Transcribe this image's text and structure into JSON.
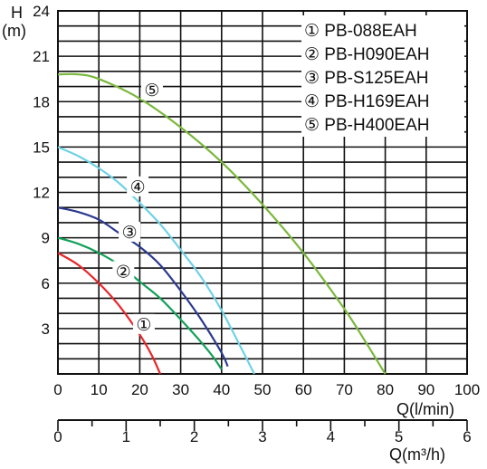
{
  "chart_data": {
    "type": "line",
    "ylabel_main": "H",
    "ylabel_unit": "(m)",
    "xlabel_primary": "Q(l/min)",
    "xlabel_secondary": "Q(m³/h)",
    "xlim": [
      0,
      100
    ],
    "ylim": [
      0,
      24
    ],
    "xlim_secondary": [
      0,
      6
    ],
    "x_ticks": [
      "0",
      "10",
      "20",
      "30",
      "40",
      "50",
      "60",
      "70",
      "80",
      "90",
      "100"
    ],
    "y_ticks": [
      "3",
      "6",
      "9",
      "12",
      "15",
      "18",
      "21",
      "24"
    ],
    "x_secondary_ticks": [
      "0",
      "1",
      "2",
      "3",
      "4",
      "5",
      "6"
    ],
    "grid": true,
    "legend_position": "top-right",
    "series": [
      {
        "name": "PB-088EAH",
        "marker": "①",
        "color": "#e8262b",
        "marker_at": [
          21,
          3.3
        ],
        "x": [
          0,
          5,
          10,
          15,
          20,
          23,
          25
        ],
        "y": [
          8.0,
          7.2,
          6.0,
          4.5,
          2.6,
          1.2,
          0
        ]
      },
      {
        "name": "PB-H090EAH",
        "marker": "②",
        "color": "#12a05a",
        "marker_at": [
          16,
          6.8
        ],
        "x": [
          0,
          5,
          10,
          15,
          20,
          25,
          30,
          35,
          38,
          40
        ],
        "y": [
          9.0,
          8.6,
          8.0,
          7.2,
          6.1,
          5.0,
          3.6,
          2.1,
          1.1,
          0.3
        ]
      },
      {
        "name": "PB-S125EAH",
        "marker": "③",
        "color": "#2b3a8e",
        "marker_at": [
          17.5,
          9.4
        ],
        "x": [
          0,
          5,
          10,
          15,
          20,
          25,
          30,
          35,
          40,
          41.5
        ],
        "y": [
          11.0,
          10.7,
          10.2,
          9.3,
          8.4,
          7.2,
          5.5,
          3.6,
          1.4,
          0.5
        ]
      },
      {
        "name": "PB-H169EAH",
        "marker": "④",
        "color": "#6fd2e6",
        "marker_at": [
          19.5,
          12.4
        ],
        "x": [
          0,
          5,
          10,
          15,
          20,
          25,
          30,
          35,
          40,
          45,
          48
        ],
        "y": [
          15.0,
          14.4,
          13.6,
          12.6,
          11.3,
          9.9,
          8.2,
          6.4,
          4.2,
          1.6,
          0
        ]
      },
      {
        "name": "PB-H400EAH",
        "marker": "⑤",
        "color": "#7ab83c",
        "marker_at": [
          23,
          18.8
        ],
        "x": [
          0,
          5,
          10,
          20,
          30,
          40,
          50,
          60,
          70,
          75,
          80
        ],
        "y": [
          19.8,
          19.8,
          19.5,
          18.2,
          16.3,
          14.0,
          11.2,
          8.0,
          4.3,
          2.2,
          0
        ]
      }
    ]
  }
}
